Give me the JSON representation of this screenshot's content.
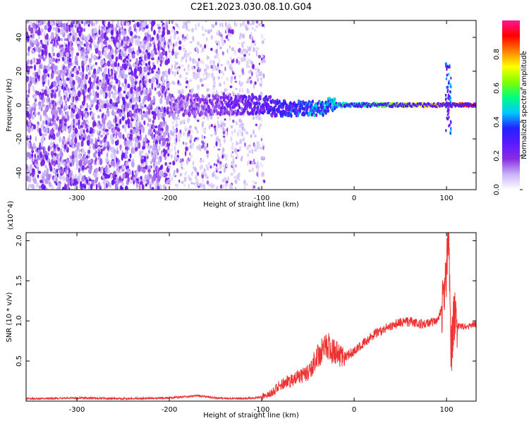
{
  "title": "C2E1.2023.030.08.10.G04",
  "colors": {
    "snr_line": "#ee3333",
    "colormap": [
      "#ffffff",
      "#c8b4f8",
      "#8a2be2",
      "#5a1aff",
      "#2222ff",
      "#00c8ff",
      "#00ff80",
      "#80ff00",
      "#ffff00",
      "#ff8000",
      "#ff0000",
      "#ff1493"
    ]
  },
  "chart_data": [
    {
      "type": "heatmap",
      "title": "C2E1.2023.030.08.10.G04",
      "xlabel": "Height of straight line (km)",
      "ylabel": "Frequency (Hz)",
      "xlim": [
        -355,
        132
      ],
      "ylim": [
        -50,
        50
      ],
      "xticks": [
        "-300",
        "-200",
        "-100",
        "0",
        "100"
      ],
      "yticks": [
        "-40",
        "-20",
        "0",
        "20",
        "40"
      ],
      "colorbar": {
        "label": "Normalized spectral amplitude",
        "range": [
          0.0,
          1.0
        ],
        "ticks": [
          "0.0",
          "0.2",
          "0.4",
          "0.6",
          "0.8"
        ]
      },
      "features": [
        {
          "description": "dense purple noise",
          "x_range": [
            -355,
            -200
          ],
          "freq_range": [
            -50,
            50
          ],
          "amplitude": 0.1
        },
        {
          "description": "sparse light noise",
          "x_range": [
            -200,
            -97
          ],
          "freq_range": [
            -50,
            50
          ],
          "amplitude": 0.05
        },
        {
          "description": "signal trace near 0 Hz",
          "x_range": [
            -200,
            132
          ],
          "freq_center": 0,
          "amplitude_start": 0.15,
          "amplitude_end": 0.95
        },
        {
          "description": "spike",
          "x": 102,
          "freq_range": [
            -18,
            25
          ],
          "amplitude": 0.4
        }
      ]
    },
    {
      "type": "line",
      "xlabel": "Height of straight line (km)",
      "ylabel": "SNR (10 * v/v)",
      "y_multiplier": "(x10^4)",
      "xlim": [
        -355,
        132
      ],
      "ylim": [
        0,
        2.1
      ],
      "xticks": [
        "-300",
        "-200",
        "-100",
        "0",
        "100"
      ],
      "yticks": [
        "0.5",
        "1.0",
        "1.5",
        "2.0"
      ],
      "series": [
        {
          "x": [
            -355,
            -300,
            -250,
            -200,
            -170,
            -150,
            -120,
            -100,
            -90,
            -80,
            -70,
            -60,
            -50,
            -40,
            -30,
            -20,
            -10,
            0,
            10,
            20,
            30,
            40,
            50,
            60,
            70,
            80,
            90,
            95,
            100,
            102,
            105,
            108,
            112,
            120,
            132
          ],
          "y": [
            0.03,
            0.04,
            0.03,
            0.04,
            0.07,
            0.04,
            0.03,
            0.05,
            0.1,
            0.2,
            0.25,
            0.3,
            0.35,
            0.55,
            0.7,
            0.6,
            0.55,
            0.62,
            0.72,
            0.82,
            0.88,
            0.94,
            0.98,
            0.99,
            0.96,
            0.97,
            1.0,
            1.15,
            1.55,
            2.1,
            0.6,
            1.05,
            0.93,
            0.93,
            0.96
          ]
        }
      ]
    }
  ]
}
